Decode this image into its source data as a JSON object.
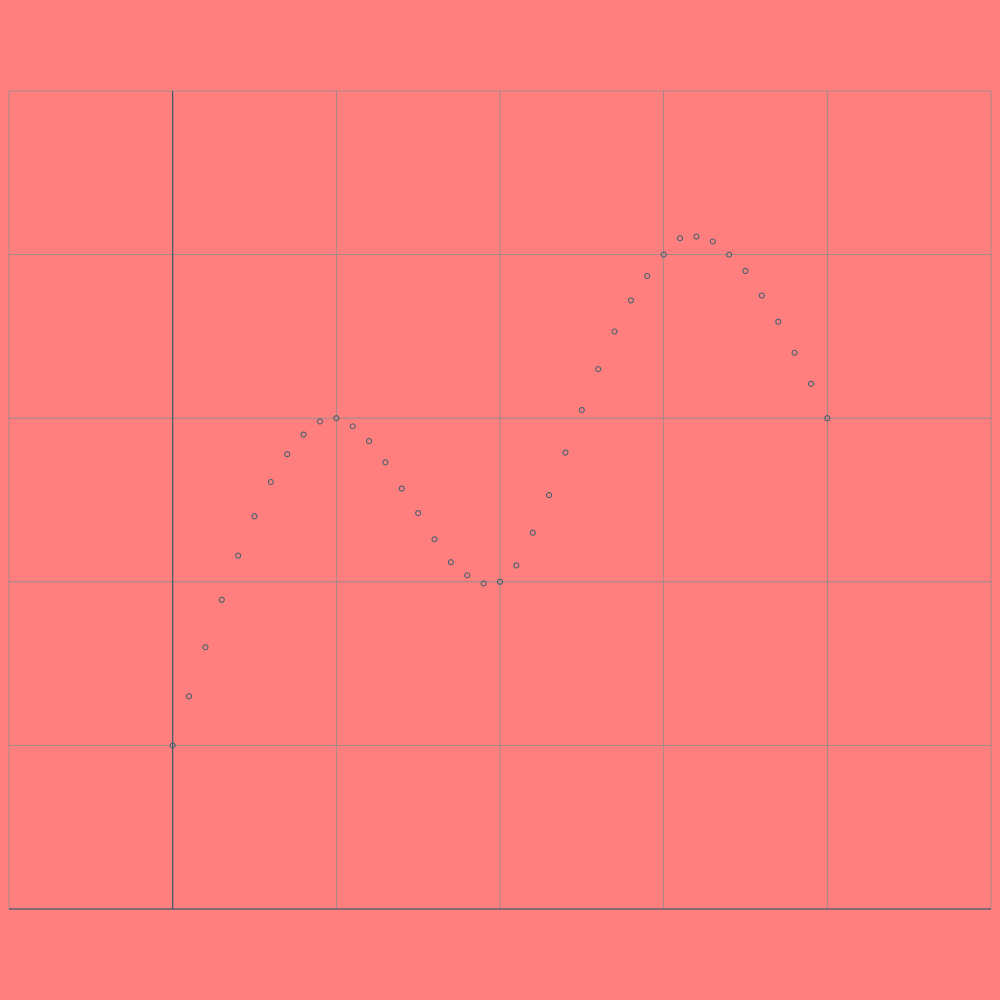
{
  "chart_data": {
    "type": "scatter",
    "title": "",
    "xlabel": "",
    "ylabel": "",
    "xlim": [
      -1,
      5
    ],
    "ylim": [
      -3,
      2
    ],
    "grid": true,
    "x_gridlines": [
      -1,
      0,
      1,
      2,
      3,
      4,
      5
    ],
    "y_gridlines": [
      -3,
      -2,
      -1,
      0,
      1,
      2
    ],
    "colors": {
      "background": "#ff7f7f",
      "grid": "#8c8c8c",
      "axis": "#3c5a6a",
      "marker": "#3f6070"
    },
    "series": [
      {
        "x": [
          0,
          0.1,
          0.2,
          0.3,
          0.4,
          0.5,
          0.6,
          0.7,
          0.8,
          0.9,
          1.0,
          1.1,
          1.2,
          1.3,
          1.4,
          1.5,
          1.6,
          1.7,
          1.8,
          1.9,
          2.0,
          2.1,
          2.2,
          2.3,
          2.4,
          2.5,
          2.6,
          2.7,
          2.8,
          2.9,
          3.0,
          3.1,
          3.2,
          3.3,
          3.4,
          3.5,
          3.6,
          3.7,
          3.8,
          3.9,
          4.0
        ],
        "y": [
          -2.0,
          -1.7,
          -1.4,
          -1.11,
          -0.84,
          -0.6,
          -0.39,
          -0.22,
          -0.1,
          -0.02,
          0.0,
          -0.05,
          -0.14,
          -0.27,
          -0.43,
          -0.58,
          -0.74,
          -0.88,
          -0.96,
          -1.01,
          -1.0,
          -0.9,
          -0.7,
          -0.47,
          -0.21,
          0.05,
          0.3,
          0.53,
          0.72,
          0.87,
          1.0,
          1.1,
          1.11,
          1.08,
          1.0,
          0.9,
          0.75,
          0.59,
          0.4,
          0.21,
          0.0
        ]
      }
    ]
  }
}
